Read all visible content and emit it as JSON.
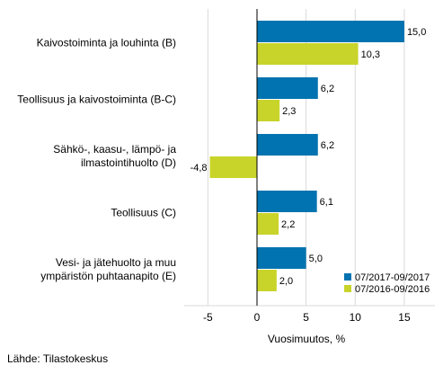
{
  "chart_data": {
    "type": "bar",
    "orientation": "horizontal",
    "categories": [
      [
        "Kaivostoiminta ja louhinta (B)"
      ],
      [
        "Teollisuus ja kaivostoiminta (B-C)"
      ],
      [
        "Sähkö-, kaasu-, lämpö- ja",
        "ilmastointihuolto (D)"
      ],
      [
        "Teollisuus (C)"
      ],
      [
        "Vesi- ja jätehuolto ja muu",
        "ympäristön puhtaanapito (E)"
      ]
    ],
    "series": [
      {
        "name": "07/2017-09/2017",
        "color": "#0073b0",
        "values": [
          15.0,
          6.2,
          6.2,
          6.1,
          5.0
        ],
        "labels": [
          "15,0",
          "6,2",
          "6,2",
          "6,1",
          "5,0"
        ]
      },
      {
        "name": "07/2016-09/2016",
        "color": "#c8d42a",
        "values": [
          10.3,
          2.3,
          -4.8,
          2.2,
          2.0
        ],
        "labels": [
          "10,3",
          "2,3",
          "-4,8",
          "2,2",
          "2,0"
        ]
      }
    ],
    "xlabel": "Vuosimuutos, %",
    "xlim": [
      -7.5,
      17.5
    ],
    "xticks": [
      -5,
      0,
      5,
      10,
      15
    ],
    "xtick_labels": [
      "-5",
      "0",
      "5",
      "10",
      "15"
    ],
    "grid": true,
    "legend_position": "bottom-right"
  },
  "source": "Lähde: Tilastokeskus"
}
